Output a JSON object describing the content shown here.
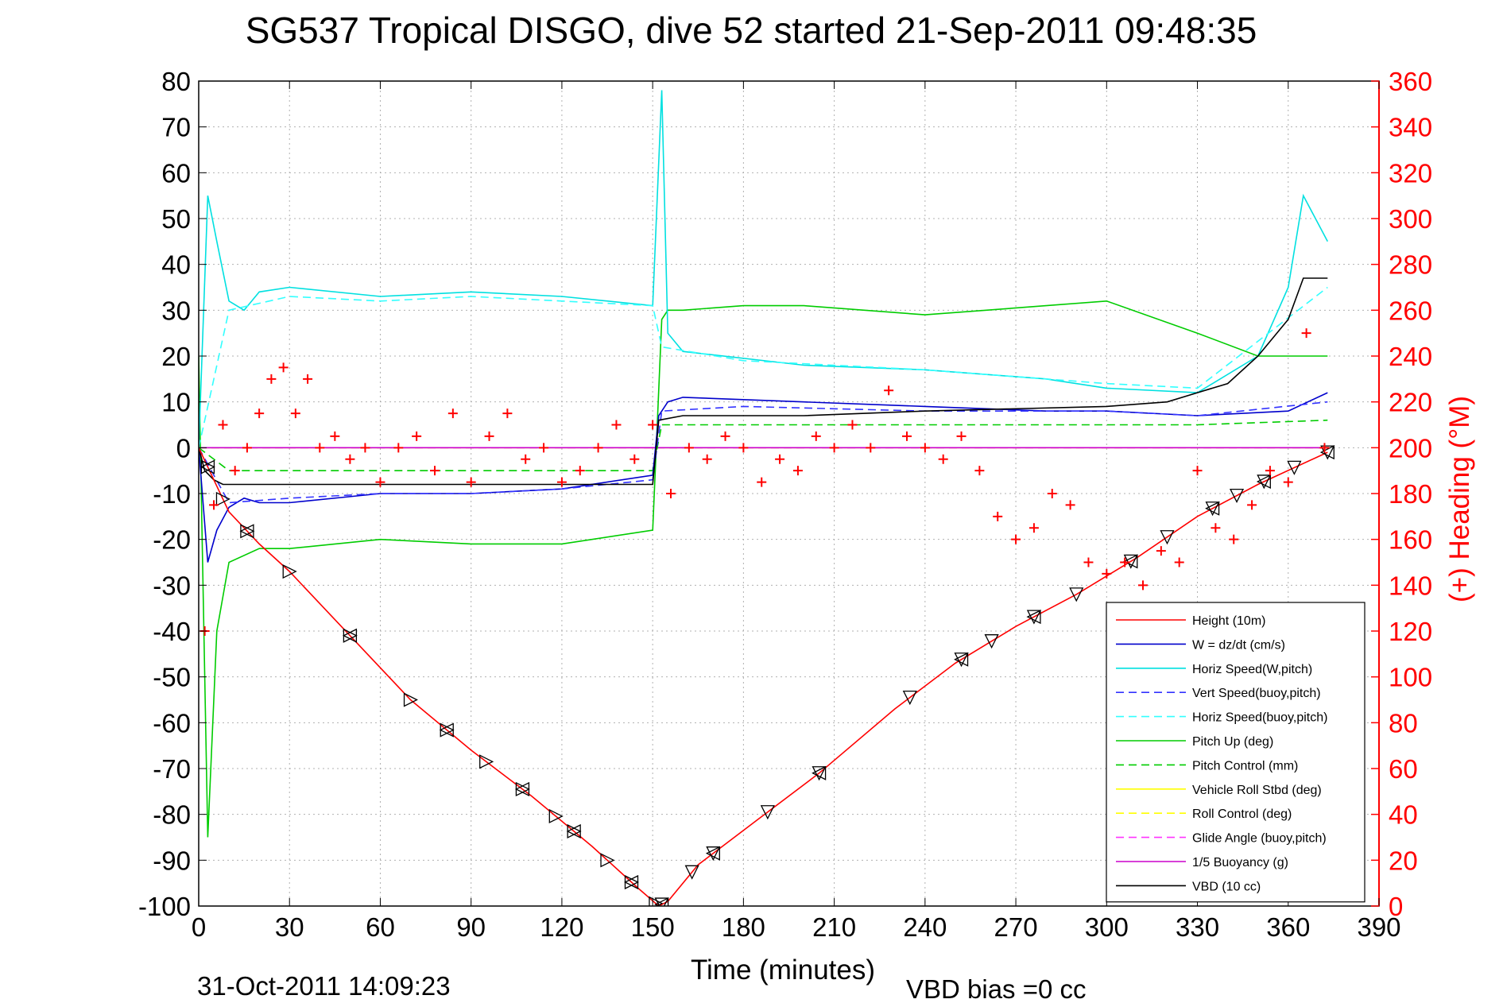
{
  "chart_data": {
    "type": "line",
    "title": "SG537 Tropical DISGO, dive 52 started 21-Sep-2011 09:48:35",
    "xlabel": "Time (minutes)",
    "ylabel": "",
    "y2label": "(+) Heading (°M)",
    "footer_date": "31-Oct-2011 14:09:23",
    "footer_note": "VBD bias =0 cc",
    "xlim": [
      0,
      390
    ],
    "ylim": [
      -100,
      80
    ],
    "y2lim": [
      0,
      360
    ],
    "x_ticks": [
      "0",
      "30",
      "60",
      "90",
      "120",
      "150",
      "180",
      "210",
      "240",
      "270",
      "300",
      "330",
      "360",
      "390"
    ],
    "y_ticks": [
      "80",
      "70",
      "60",
      "50",
      "40",
      "30",
      "20",
      "10",
      "0",
      "-10",
      "-20",
      "-30",
      "-40",
      "-50",
      "-60",
      "-70",
      "-80",
      "-90",
      "-100"
    ],
    "y2_ticks": [
      "360",
      "340",
      "320",
      "300",
      "280",
      "260",
      "240",
      "220",
      "200",
      "180",
      "160",
      "140",
      "120",
      "100",
      "80",
      "60",
      "40",
      "20",
      "0"
    ],
    "grid": true,
    "legend_position": "bottom-right",
    "series": [
      {
        "name": "Height (10m)",
        "color": "#ff0000",
        "style": "solid",
        "x": [
          0,
          5,
          10,
          20,
          30,
          50,
          70,
          90,
          110,
          130,
          145,
          152,
          155,
          165,
          185,
          205,
          230,
          250,
          270,
          290,
          310,
          330,
          350,
          373
        ],
        "y": [
          0,
          -7,
          -14,
          -21,
          -27,
          -41,
          -55,
          -66,
          -76,
          -87,
          -96,
          -100,
          -99,
          -91,
          -81,
          -71,
          -57,
          -47,
          -39,
          -32,
          -24,
          -15,
          -8,
          -1
        ]
      },
      {
        "name": "W = dz/dt (cm/s)",
        "color": "#0000cc",
        "style": "solid",
        "x": [
          0,
          3,
          6,
          10,
          15,
          20,
          30,
          60,
          90,
          120,
          150,
          152,
          155,
          160,
          200,
          240,
          280,
          300,
          330,
          360,
          373
        ],
        "y": [
          0,
          -25,
          -18,
          -13,
          -11,
          -12,
          -12,
          -10,
          -10,
          -9,
          -6,
          7,
          10,
          11,
          10,
          9,
          8,
          8,
          7,
          8,
          12
        ]
      },
      {
        "name": "Horiz Speed(W,pitch)",
        "color": "#00e0e0",
        "style": "solid",
        "x": [
          0,
          3,
          6,
          10,
          15,
          20,
          30,
          60,
          90,
          120,
          150,
          153,
          155,
          160,
          200,
          240,
          280,
          300,
          330,
          350,
          360,
          365,
          373
        ],
        "y": [
          0,
          55,
          45,
          32,
          30,
          34,
          35,
          33,
          34,
          33,
          31,
          78,
          25,
          21,
          18,
          17,
          15,
          13,
          12,
          20,
          35,
          55,
          45
        ]
      },
      {
        "name": "Vert Speed(buoy,pitch)",
        "color": "#3333ff",
        "style": "dashed",
        "x": [
          0,
          10,
          30,
          60,
          90,
          120,
          150,
          153,
          180,
          240,
          300,
          330,
          373
        ],
        "y": [
          0,
          -12,
          -11,
          -10,
          -10,
          -9,
          -7,
          8,
          9,
          8,
          8,
          7,
          10
        ]
      },
      {
        "name": "Horiz Speed(buoy,pitch)",
        "color": "#33ffff",
        "style": "dashed",
        "x": [
          0,
          10,
          30,
          60,
          90,
          120,
          150,
          153,
          180,
          240,
          300,
          330,
          373
        ],
        "y": [
          0,
          30,
          33,
          32,
          33,
          32,
          31,
          22,
          19,
          17,
          14,
          13,
          35
        ]
      },
      {
        "name": "Pitch Up (deg)",
        "color": "#00cc00",
        "style": "solid",
        "x": [
          0,
          3,
          6,
          10,
          20,
          30,
          60,
          90,
          120,
          150,
          153,
          155,
          160,
          180,
          200,
          240,
          280,
          300,
          330,
          350,
          373
        ],
        "y": [
          20,
          -85,
          -40,
          -25,
          -22,
          -22,
          -20,
          -21,
          -21,
          -18,
          28,
          30,
          30,
          31,
          31,
          29,
          31,
          32,
          25,
          20,
          20
        ]
      },
      {
        "name": "Pitch Control (mm)",
        "color": "#00cc00",
        "style": "dashed",
        "x": [
          0,
          10,
          30,
          60,
          90,
          120,
          150,
          153,
          180,
          240,
          300,
          330,
          373
        ],
        "y": [
          0,
          -5,
          -5,
          -5,
          -5,
          -5,
          -5,
          5,
          5,
          5,
          5,
          5,
          6
        ]
      },
      {
        "name": "Vehicle Roll Stbd (deg)",
        "color": "#ffff00",
        "style": "solid",
        "x": [
          0,
          20,
          60,
          90,
          120,
          150,
          180,
          210,
          240,
          270,
          300,
          330,
          360,
          373
        ],
        "y": [
          0,
          0,
          0,
          0,
          0,
          0,
          0,
          0,
          0,
          0,
          0,
          0,
          0,
          0
        ]
      },
      {
        "name": "Roll Control (deg)",
        "color": "#ffff00",
        "style": "dashed",
        "x": [
          0,
          60,
          120,
          180,
          240,
          300,
          360,
          373
        ],
        "y": [
          0,
          0,
          0,
          0,
          0,
          0,
          0,
          0
        ]
      },
      {
        "name": "Glide Angle (buoy,pitch)",
        "color": "#ff33ff",
        "style": "dashed",
        "x": [
          0,
          60,
          120,
          180,
          240,
          300,
          360,
          373
        ],
        "y": [
          0,
          0,
          0,
          0,
          0,
          0,
          0,
          0
        ]
      },
      {
        "name": "1/5 Buoyancy (g)",
        "color": "#cc00cc",
        "style": "solid",
        "x": [
          0,
          60,
          120,
          180,
          240,
          300,
          360,
          373
        ],
        "y": [
          0,
          0,
          0,
          0,
          0,
          0,
          0,
          0
        ]
      },
      {
        "name": "VBD (10 cc)",
        "color": "#000000",
        "style": "solid",
        "x": [
          0,
          2,
          5,
          8,
          30,
          60,
          120,
          150,
          152,
          160,
          200,
          240,
          300,
          320,
          330,
          340,
          350,
          360,
          365,
          373
        ],
        "y": [
          0,
          -5,
          -7,
          -8,
          -8,
          -8,
          -8,
          -8,
          6,
          7,
          7,
          8,
          9,
          10,
          12,
          14,
          20,
          28,
          37,
          37
        ]
      }
    ],
    "heading": {
      "color": "#ff0000",
      "marker": "+",
      "x": [
        2,
        5,
        8,
        12,
        16,
        20,
        24,
        28,
        32,
        36,
        40,
        45,
        50,
        55,
        60,
        66,
        72,
        78,
        84,
        90,
        96,
        102,
        108,
        114,
        120,
        126,
        132,
        138,
        144,
        150,
        156,
        162,
        168,
        174,
        180,
        186,
        192,
        198,
        204,
        210,
        216,
        222,
        228,
        234,
        240,
        246,
        252,
        258,
        264,
        270,
        276,
        282,
        288,
        294,
        300,
        306,
        312,
        318,
        324,
        330,
        336,
        342,
        348,
        354,
        360,
        366,
        372
      ],
      "y": [
        120,
        175,
        210,
        190,
        200,
        215,
        230,
        235,
        215,
        230,
        200,
        205,
        195,
        200,
        185,
        200,
        205,
        190,
        215,
        185,
        205,
        215,
        195,
        200,
        185,
        190,
        200,
        210,
        195,
        210,
        180,
        200,
        195,
        205,
        200,
        185,
        195,
        190,
        205,
        200,
        210,
        200,
        225,
        205,
        200,
        195,
        205,
        190,
        170,
        160,
        165,
        180,
        175,
        150,
        145,
        150,
        140,
        155,
        150,
        190,
        165,
        160,
        175,
        190,
        185,
        250,
        200
      ]
    }
  }
}
